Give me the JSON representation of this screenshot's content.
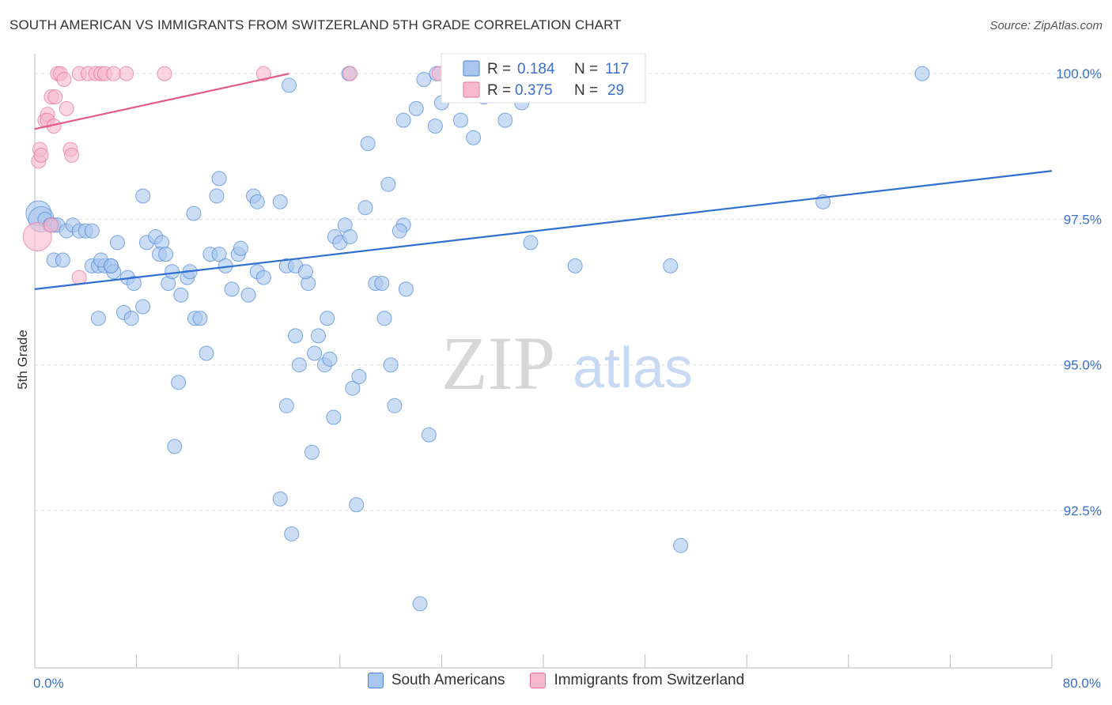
{
  "header": {
    "title": "SOUTH AMERICAN VS IMMIGRANTS FROM SWITZERLAND 5TH GRADE CORRELATION CHART",
    "source": "Source: ZipAtlas.com"
  },
  "watermark": {
    "zip": "ZIP",
    "atlas": "atlas"
  },
  "colors": {
    "blue": "#4a86d8",
    "blue_fill": "#a9c6ef",
    "blue_line": "#2f6fcf",
    "pink": "#e8719a",
    "pink_fill": "#f6b9cd",
    "pink_line": "#e25a88",
    "axis_text": "#3a6fc9",
    "grid": "#dddddd"
  },
  "legend_box": {
    "rows": [
      {
        "r_label": "R =",
        "r_value": "0.184",
        "n_label": "N =",
        "n_value": "117",
        "series": "blue"
      },
      {
        "r_label": "R =",
        "r_value": "0.375",
        "n_label": "N =",
        "n_value": "29",
        "series": "pink"
      }
    ]
  },
  "legend_bottom": [
    "South Americans",
    "Immigrants from Switzerland"
  ],
  "chart_data": {
    "type": "scatter",
    "title": "SOUTH AMERICAN VS IMMIGRANTS FROM SWITZERLAND 5TH GRADE CORRELATION CHART",
    "ylabel": "5th Grade",
    "xlabel": "",
    "xlim": [
      0,
      80
    ],
    "ylim": [
      89.8,
      100.45
    ],
    "x_tick_labels": [
      {
        "value": 0,
        "label": "0.0%"
      },
      {
        "value": 80,
        "label": "80.0%"
      }
    ],
    "y_tick_labels": [
      {
        "value": 100,
        "label": "100.0%"
      },
      {
        "value": 97.5,
        "label": "97.5%"
      },
      {
        "value": 95,
        "label": "95.0%"
      },
      {
        "value": 92.5,
        "label": "92.5%"
      }
    ],
    "series": [
      {
        "name": "South Americans",
        "color": "blue",
        "trend": [
          [
            0,
            96.3
          ],
          [
            80,
            98.33
          ]
        ],
        "points": [
          [
            0.3,
            97.6
          ],
          [
            0.5,
            97.5
          ],
          [
            0.8,
            97.5
          ],
          [
            1.2,
            97.4
          ],
          [
            1.5,
            97.4
          ],
          [
            1.8,
            97.4
          ],
          [
            2.5,
            97.3
          ],
          [
            3.0,
            97.4
          ],
          [
            3.5,
            97.3
          ],
          [
            4.0,
            97.3
          ],
          [
            1.5,
            96.8
          ],
          [
            2.2,
            96.8
          ],
          [
            4.5,
            97.3
          ],
          [
            6.5,
            97.1
          ],
          [
            8.5,
            97.9
          ],
          [
            8.8,
            97.1
          ],
          [
            9.5,
            97.2
          ],
          [
            10.0,
            97.1
          ],
          [
            9.8,
            96.9
          ],
          [
            10.3,
            96.9
          ],
          [
            4.5,
            96.7
          ],
          [
            5.0,
            96.7
          ],
          [
            5.5,
            96.7
          ],
          [
            6.0,
            96.7
          ],
          [
            5.2,
            96.8
          ],
          [
            6.2,
            96.6
          ],
          [
            7.3,
            96.5
          ],
          [
            7.8,
            96.4
          ],
          [
            8.5,
            96.0
          ],
          [
            7.0,
            95.9
          ],
          [
            5.0,
            95.8
          ],
          [
            7.6,
            95.8
          ],
          [
            10.5,
            96.4
          ],
          [
            10.8,
            96.6
          ],
          [
            11.5,
            96.2
          ],
          [
            12.0,
            96.5
          ],
          [
            12.2,
            96.6
          ],
          [
            12.6,
            95.8
          ],
          [
            13.0,
            95.8
          ],
          [
            13.5,
            95.2
          ],
          [
            13.8,
            96.9
          ],
          [
            14.5,
            96.9
          ],
          [
            15.0,
            96.7
          ],
          [
            15.5,
            96.3
          ],
          [
            16.0,
            96.9
          ],
          [
            16.2,
            97.0
          ],
          [
            16.8,
            96.2
          ],
          [
            17.5,
            96.6
          ],
          [
            18.0,
            96.5
          ],
          [
            17.2,
            97.9
          ],
          [
            11.3,
            94.7
          ],
          [
            11.0,
            93.6
          ],
          [
            12.5,
            97.6
          ],
          [
            14.3,
            97.9
          ],
          [
            14.5,
            98.2
          ],
          [
            17.5,
            97.8
          ],
          [
            19.3,
            97.8
          ],
          [
            19.8,
            96.7
          ],
          [
            20.5,
            96.7
          ],
          [
            21.5,
            96.4
          ],
          [
            21.3,
            96.6
          ],
          [
            20.0,
            99.8
          ],
          [
            20.5,
            95.5
          ],
          [
            20.8,
            95.0
          ],
          [
            19.8,
            94.3
          ],
          [
            21.8,
            93.5
          ],
          [
            20.2,
            92.1
          ],
          [
            19.3,
            92.7
          ],
          [
            22.0,
            95.2
          ],
          [
            22.3,
            95.5
          ],
          [
            22.8,
            95.0
          ],
          [
            23.2,
            95.1
          ],
          [
            23.0,
            95.8
          ],
          [
            23.6,
            97.2
          ],
          [
            24.0,
            97.1
          ],
          [
            24.4,
            97.4
          ],
          [
            24.8,
            97.2
          ],
          [
            23.5,
            94.1
          ],
          [
            25.0,
            94.6
          ],
          [
            25.5,
            94.8
          ],
          [
            25.3,
            92.6
          ],
          [
            26.0,
            97.7
          ],
          [
            26.2,
            98.8
          ],
          [
            26.8,
            96.4
          ],
          [
            27.3,
            96.4
          ],
          [
            27.5,
            95.8
          ],
          [
            27.8,
            98.1
          ],
          [
            28.0,
            95.0
          ],
          [
            28.3,
            94.3
          ],
          [
            29.0,
            97.4
          ],
          [
            28.7,
            97.3
          ],
          [
            29.2,
            96.3
          ],
          [
            29.0,
            99.2
          ],
          [
            30.0,
            99.4
          ],
          [
            30.6,
            99.9
          ],
          [
            30.3,
            90.9
          ],
          [
            31.0,
            93.8
          ],
          [
            31.5,
            99.1
          ],
          [
            32.0,
            99.5
          ],
          [
            33.5,
            99.2
          ],
          [
            34.5,
            98.9
          ],
          [
            35.3,
            99.6
          ],
          [
            35.8,
            100.0
          ],
          [
            37.0,
            99.2
          ],
          [
            37.4,
            99.9
          ],
          [
            38.3,
            99.5
          ],
          [
            38.7,
            100.0
          ],
          [
            39.0,
            97.1
          ],
          [
            42.0,
            99.8
          ],
          [
            42.5,
            96.7
          ],
          [
            50.0,
            96.7
          ],
          [
            50.8,
            91.9
          ],
          [
            62.0,
            97.8
          ],
          [
            69.8,
            100.0
          ],
          [
            24.7,
            100.0
          ],
          [
            31.6,
            100.0
          ],
          [
            6.0,
            96.7
          ]
        ]
      },
      {
        "name": "Immigrants from Switzerland",
        "color": "pink",
        "trend": [
          [
            0,
            99.05
          ],
          [
            20,
            100.0
          ]
        ],
        "points": [
          [
            0.2,
            97.2
          ],
          [
            0.3,
            98.5
          ],
          [
            0.4,
            98.7
          ],
          [
            0.5,
            98.6
          ],
          [
            0.8,
            99.2
          ],
          [
            1.0,
            99.3
          ],
          [
            1.0,
            99.2
          ],
          [
            1.3,
            99.6
          ],
          [
            1.3,
            97.4
          ],
          [
            1.5,
            99.1
          ],
          [
            1.6,
            99.6
          ],
          [
            1.8,
            100.0
          ],
          [
            2.0,
            100.0
          ],
          [
            2.3,
            99.9
          ],
          [
            2.5,
            99.4
          ],
          [
            2.8,
            98.7
          ],
          [
            2.9,
            98.6
          ],
          [
            3.5,
            100.0
          ],
          [
            3.5,
            96.5
          ],
          [
            4.2,
            100.0
          ],
          [
            4.8,
            100.0
          ],
          [
            5.2,
            100.0
          ],
          [
            5.5,
            100.0
          ],
          [
            6.2,
            100.0
          ],
          [
            7.2,
            100.0
          ],
          [
            10.2,
            100.0
          ],
          [
            18.0,
            100.0
          ],
          [
            24.8,
            100.0
          ],
          [
            31.8,
            100.0
          ]
        ]
      }
    ],
    "grid": "horizontal dashed"
  }
}
